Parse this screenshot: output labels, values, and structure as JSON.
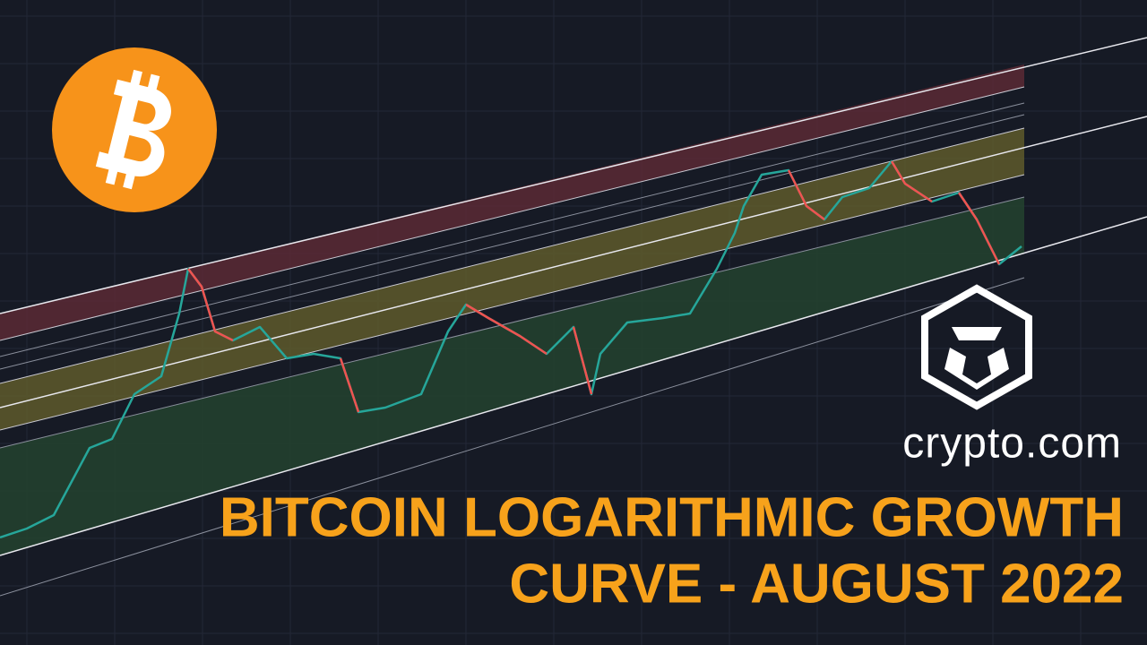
{
  "brand": {
    "name": "crypto.com"
  },
  "title": {
    "line1": "BITCOIN LOGARITHMIC GROWTH",
    "line2": "CURVE - AUGUST 2022"
  }
}
